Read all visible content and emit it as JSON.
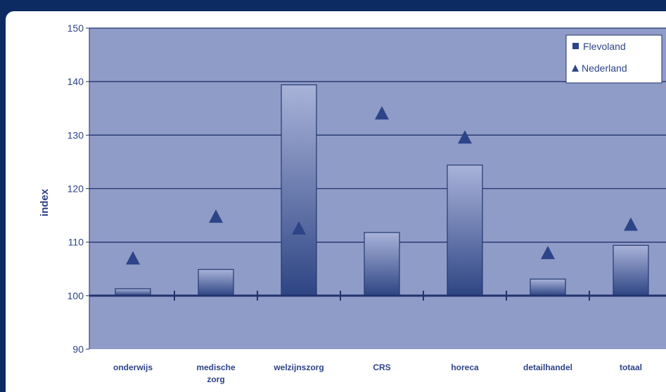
{
  "chart_data": {
    "type": "bar",
    "title": "",
    "xlabel": "",
    "ylabel": "index",
    "ylim": [
      90,
      150
    ],
    "yticks": [
      90,
      100,
      110,
      120,
      130,
      140,
      150
    ],
    "baseline": 100,
    "categories": [
      [
        "onderwijs"
      ],
      [
        "medische",
        "zorg"
      ],
      [
        "welzijnszorg"
      ],
      [
        "CRS"
      ],
      [
        "horeca"
      ],
      [
        "detailhandel"
      ],
      [
        "totaal"
      ]
    ],
    "series": [
      {
        "name": "Flevoland",
        "kind": "bar",
        "values": [
          101.3,
          104.9,
          139.4,
          111.8,
          124.4,
          103.1,
          109.4
        ]
      },
      {
        "name": "Nederland",
        "kind": "marker",
        "values": [
          107.0,
          114.8,
          112.6,
          134.1,
          129.6,
          108.0,
          113.3
        ]
      }
    ],
    "legend_position": "top-right",
    "grid": true,
    "colors": {
      "plot_bg": "#8f9cc7",
      "grid": "#22336e",
      "bar_top": "#a9b3d9",
      "bar_bottom": "#2e4584",
      "marker": "#2d4488",
      "axis_text": "#2d4488",
      "frame": "#0d2b63"
    }
  }
}
